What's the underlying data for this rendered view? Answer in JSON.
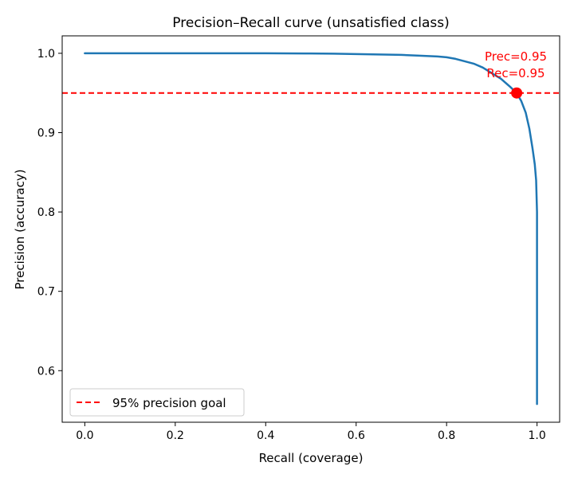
{
  "chart_data": {
    "type": "line",
    "title": "Precision–Recall curve (unsatisfied class)",
    "xlabel": "Recall (coverage)",
    "ylabel": "Precision (accuracy)",
    "xlim": [
      -0.05,
      1.05
    ],
    "ylim": [
      0.535,
      1.022
    ],
    "xticks": [
      0.0,
      0.2,
      0.4,
      0.6,
      0.8,
      1.0
    ],
    "xtick_labels": [
      "0.0",
      "0.2",
      "0.4",
      "0.6",
      "0.8",
      "1.0"
    ],
    "yticks": [
      0.6,
      0.7,
      0.8,
      0.9,
      1.0
    ],
    "ytick_labels": [
      "0.6",
      "0.7",
      "0.8",
      "0.9",
      "1.0"
    ],
    "grid": false,
    "series": [
      {
        "color": "#1f77b4",
        "x": [
          0.0,
          0.1,
          0.2,
          0.3,
          0.4,
          0.5,
          0.55,
          0.6,
          0.65,
          0.7,
          0.74,
          0.78,
          0.8,
          0.82,
          0.84,
          0.86,
          0.88,
          0.9,
          0.92,
          0.94,
          0.955,
          0.965,
          0.975,
          0.983,
          0.99,
          0.995,
          0.998,
          1.0,
          1.0,
          1.0,
          1.0,
          1.0
        ],
        "y": [
          1.0,
          1.0,
          1.0,
          1.0,
          1.0,
          0.9998,
          0.9995,
          0.999,
          0.9985,
          0.998,
          0.997,
          0.996,
          0.995,
          0.993,
          0.99,
          0.987,
          0.982,
          0.975,
          0.968,
          0.958,
          0.95,
          0.94,
          0.925,
          0.905,
          0.88,
          0.86,
          0.84,
          0.8,
          0.7,
          0.6,
          0.58,
          0.558
        ]
      }
    ],
    "reference_line": {
      "orientation": "horizontal",
      "y": 0.95,
      "color": "#ff0000",
      "style": "dashed",
      "label": "95% precision goal"
    },
    "highlight_point": {
      "x": 0.955,
      "y": 0.95,
      "color": "#ff0000"
    },
    "annotation": {
      "line1": "Prec=0.95",
      "line2": "Rec=0.95",
      "color": "#ff0000"
    },
    "legend": {
      "position": "lower-left",
      "entries": [
        "95% precision goal"
      ]
    }
  }
}
